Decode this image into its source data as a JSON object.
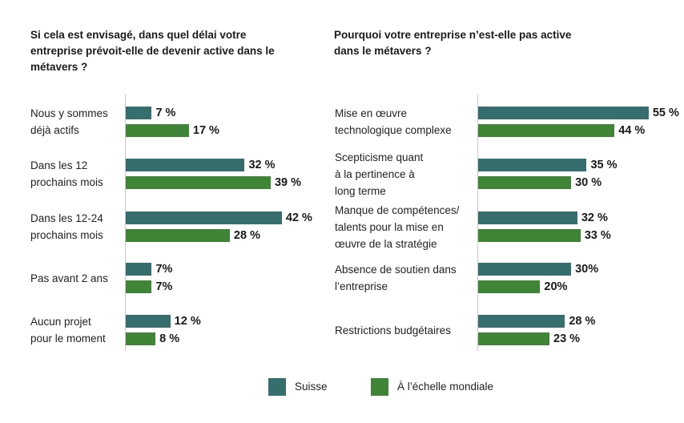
{
  "colors": {
    "suisse": "#356e6c",
    "monde": "#3f8437"
  },
  "legend": [
    {
      "label": "Suisse",
      "color": "#356e6c"
    },
    {
      "label": "À l’échelle mondiale",
      "color": "#3f8437"
    }
  ],
  "chart_data": [
    {
      "type": "bar",
      "orientation": "horizontal",
      "title": "Si cela est envisagé, dans quel délai votre entreprise prévoit-elle de devenir active dans le métavers ?",
      "categories": [
        "Nous y sommes déjà actifs",
        "Dans les 12 prochains mois",
        "Dans les 12-24 prochains mois",
        "Pas avant 2 ans",
        "Aucun projet pour le moment"
      ],
      "category_lines": [
        [
          "Nous y sommes",
          "déjà actifs"
        ],
        [
          "Dans les 12",
          "prochains mois"
        ],
        [
          "Dans les 12-24",
          "prochains mois"
        ],
        [
          "Pas avant 2 ans"
        ],
        [
          "Aucun projet",
          "pour le moment"
        ]
      ],
      "series": [
        {
          "name": "Suisse",
          "values": [
            7,
            32,
            42,
            7,
            12
          ],
          "labels": [
            "7 %",
            "32 %",
            "42 %",
            "7%",
            "12 %"
          ]
        },
        {
          "name": "À l’échelle mondiale",
          "values": [
            17,
            39,
            28,
            7,
            8
          ],
          "labels": [
            "17 %",
            "39 %",
            "28 %",
            "7%",
            "8 %"
          ]
        }
      ],
      "unit": "%",
      "xlabel": "",
      "ylabel": "",
      "grid": false
    },
    {
      "type": "bar",
      "orientation": "horizontal",
      "title": "Pourquoi votre entreprise n’est-elle pas active dans le métavers ?",
      "categories": [
        "Mise en œuvre technologique complexe",
        "Scepticisme quant à la pertinence à long terme",
        "Manque de compétences/ talents pour la mise en œuvre de la stratégie",
        "Absence de soutien dans l’entreprise",
        "Restrictions budgétaires"
      ],
      "category_lines": [
        [
          "Mise en œuvre",
          "technologique complexe"
        ],
        [
          "Scepticisme quant",
          "à la pertinence à",
          "long terme"
        ],
        [
          "Manque de compétences/",
          "talents pour la mise en",
          "œuvre de la stratégie"
        ],
        [
          "Absence de soutien dans",
          "l’entreprise"
        ],
        [
          "Restrictions budgétaires"
        ]
      ],
      "series": [
        {
          "name": "Suisse",
          "values": [
            55,
            35,
            32,
            30,
            28
          ],
          "labels": [
            "55 %",
            "35 %",
            "32 %",
            "30%",
            "28 %"
          ]
        },
        {
          "name": "À l’échelle mondiale",
          "values": [
            44,
            30,
            33,
            20,
            23
          ],
          "labels": [
            "44 %",
            "30 %",
            "33 %",
            "20%",
            "23 %"
          ]
        }
      ],
      "unit": "%",
      "xlabel": "",
      "ylabel": "",
      "grid": false
    }
  ]
}
